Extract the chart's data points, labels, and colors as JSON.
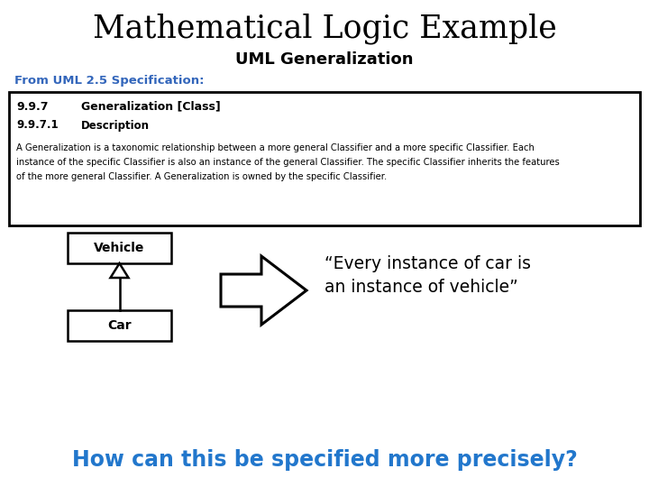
{
  "title": "Mathematical Logic Example",
  "subtitle": "UML Generalization",
  "from_label": "From UML 2.5 Specification:",
  "box_line1_num": "9.9.7",
  "box_line1_text": "Generalization [Class]",
  "box_line2_num": "9.9.7.1",
  "box_line2_text": "Description",
  "box_body_line1": "A Generalization is a taxonomic relationship between a more general Classifier and a more specific Classifier. Each",
  "box_body_line2": "instance of the specific Classifier is also an instance of the general Classifier. The specific Classifier inherits the features",
  "box_body_line3": "of the more general Classifier. A Generalization is owned by the specific Classifier.",
  "vehicle_label": "Vehicle",
  "car_label": "Car",
  "quote_line1": "“Every instance of car is",
  "quote_line2": "an instance of vehicle”",
  "bottom_text": "How can this be specified more precisely?",
  "title_color": "#000000",
  "subtitle_color": "#000000",
  "from_label_color": "#3366bb",
  "bottom_text_color": "#2277cc",
  "bg_color": "#ffffff"
}
